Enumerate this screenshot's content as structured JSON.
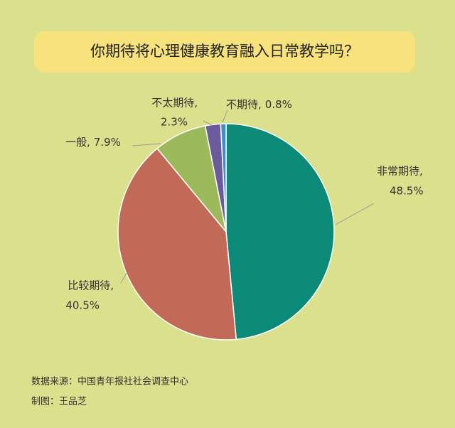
{
  "chart_data": {
    "type": "pie",
    "title": "你期待将心理健康教育融入日常教学吗？",
    "categories": [
      "非常期待,",
      "比较期待,",
      "一般,",
      "不太期待,",
      "不期待,"
    ],
    "values": [
      48.5,
      40.5,
      7.9,
      2.3,
      0.8
    ],
    "value_labels": [
      "48.5%",
      "40.5%",
      "7.9%",
      "2.3%",
      "0.8%"
    ],
    "colors": [
      "#0c8a78",
      "#c26a58",
      "#9cba5c",
      "#6b5a9c",
      "#3b8fc6"
    ],
    "source": "数据来源：中国青年报社社会调查中心",
    "credit": "制图：王品芝"
  }
}
